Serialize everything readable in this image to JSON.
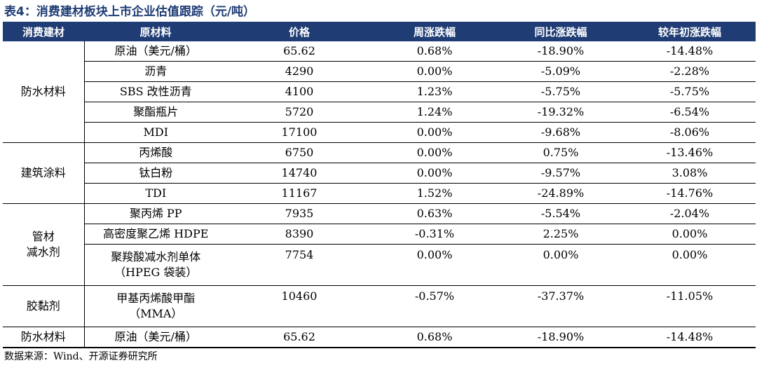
{
  "title": "表4：消费建材板块上市企业估值跟踪（元/吨）",
  "columns": [
    "消费建材",
    "原材料",
    "价格",
    "周涨跌幅",
    "同比涨跌幅",
    "较年初涨跌幅"
  ],
  "categories": {
    "waterproof": "防水材料",
    "coating": "建筑涂料",
    "pipe_line1": "管材",
    "pipe_line2": "减水剂",
    "adhesive": "胶黏剂",
    "waterproof2": "防水材料"
  },
  "rows": [
    {
      "material": "原油（美元/桶）",
      "price": "65.62",
      "week": "0.68%",
      "yoy": "-18.90%",
      "ytd": "-14.48%"
    },
    {
      "material": "沥青",
      "price": "4290",
      "week": "0.00%",
      "yoy": "-5.09%",
      "ytd": "-2.28%"
    },
    {
      "material": "SBS 改性沥青",
      "price": "4100",
      "week": "1.23%",
      "yoy": "-5.75%",
      "ytd": "-5.75%"
    },
    {
      "material": "聚酯瓶片",
      "price": "5720",
      "week": "1.24%",
      "yoy": "-19.32%",
      "ytd": "-6.54%"
    },
    {
      "material": "MDI",
      "price": "17100",
      "week": "0.00%",
      "yoy": "-9.68%",
      "ytd": "-8.06%"
    },
    {
      "material": "丙烯酸",
      "price": "6750",
      "week": "0.00%",
      "yoy": "0.75%",
      "ytd": "-13.46%"
    },
    {
      "material": "钛白粉",
      "price": "14740",
      "week": "0.00%",
      "yoy": "-9.57%",
      "ytd": "3.08%"
    },
    {
      "material": "TDI",
      "price": "11167",
      "week": "1.52%",
      "yoy": "-24.89%",
      "ytd": "-14.76%"
    },
    {
      "material": "聚丙烯 PP",
      "price": "7935",
      "week": "0.63%",
      "yoy": "-5.54%",
      "ytd": "-2.04%"
    },
    {
      "material": "高密度聚乙烯 HDPE",
      "price": "8390",
      "week": "-0.31%",
      "yoy": "2.25%",
      "ytd": "0.00%"
    },
    {
      "material_line1": "聚羧酸减水剂单体",
      "material_line2": "（HPEG 袋装）",
      "price": "7754",
      "week": "0.00%",
      "yoy": "0.00%",
      "ytd": "0.00%"
    },
    {
      "material_line1": "甲基丙烯酸甲酯",
      "material_line2": "（MMA）",
      "price": "10460",
      "week": "-0.57%",
      "yoy": "-37.37%",
      "ytd": "-11.05%"
    },
    {
      "material": "原油（美元/桶）",
      "price": "65.62",
      "week": "0.68%",
      "yoy": "-18.90%",
      "ytd": "-14.48%"
    }
  ],
  "source": "数据来源：Wind、开源证券研究所"
}
